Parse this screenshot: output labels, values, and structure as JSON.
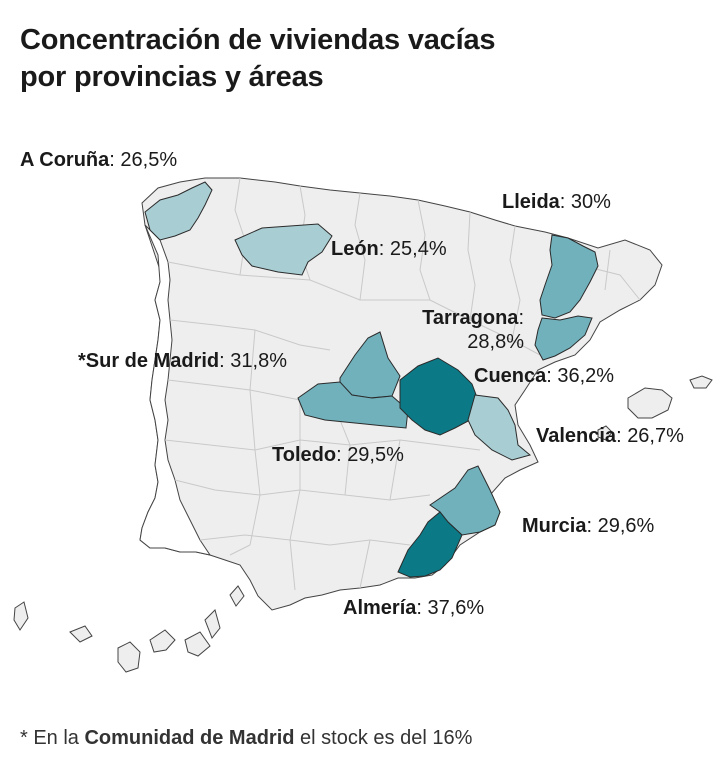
{
  "title": {
    "line1": "Concentración de viviendas vacías",
    "line2": "por provincias y áreas"
  },
  "colors": {
    "base": "#eeeeee",
    "border": "#c9c9c9",
    "coast": "#444444",
    "light": "#a8cdd3",
    "medium": "#70b1bc",
    "dark": "#0b7a86"
  },
  "areas": [
    {
      "name": "A Coruña",
      "sep": ":",
      "value": "26,5%"
    },
    {
      "name": "Lleida",
      "sep": ":",
      "value": "30%"
    },
    {
      "name": "León",
      "sep": ":",
      "value": "25,4%"
    },
    {
      "name": "Tarragona",
      "sep": ":",
      "value": "28,8%"
    },
    {
      "name": "*Sur de Madrid",
      "sep": ":",
      "value": "31,8%"
    },
    {
      "name": "Cuenca",
      "sep": ":",
      "value": "36,2%"
    },
    {
      "name": "Valencia",
      "sep": ":",
      "value": "26,7%"
    },
    {
      "name": "Toledo",
      "sep": ":",
      "value": "29,5%"
    },
    {
      "name": "Murcia",
      "sep": ":",
      "value": "29,6%"
    },
    {
      "name": "Almería",
      "sep": ":",
      "value": "37,6%"
    }
  ],
  "footnote": {
    "prefix": "* En la ",
    "bold": "Comunidad de Madrid",
    "suffix": " el stock es del 16%"
  }
}
